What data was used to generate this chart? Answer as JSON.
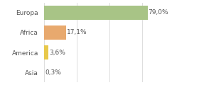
{
  "categories": [
    "Europa",
    "Africa",
    "America",
    "Asia"
  ],
  "values": [
    79.0,
    17.1,
    3.6,
    0.3
  ],
  "labels": [
    "79,0%",
    "17,1%",
    "3,6%",
    "0,3%"
  ],
  "bar_colors": [
    "#a8c486",
    "#e8a96e",
    "#e8c84a",
    "#e8c84a"
  ],
  "background_color": "#ffffff",
  "xlim": [
    0,
    100
  ],
  "bar_height": 0.72,
  "label_fontsize": 6.5,
  "tick_fontsize": 6.5,
  "grid_color": "#dddddd",
  "grid_xticks": [
    0,
    25,
    50,
    75,
    100
  ]
}
